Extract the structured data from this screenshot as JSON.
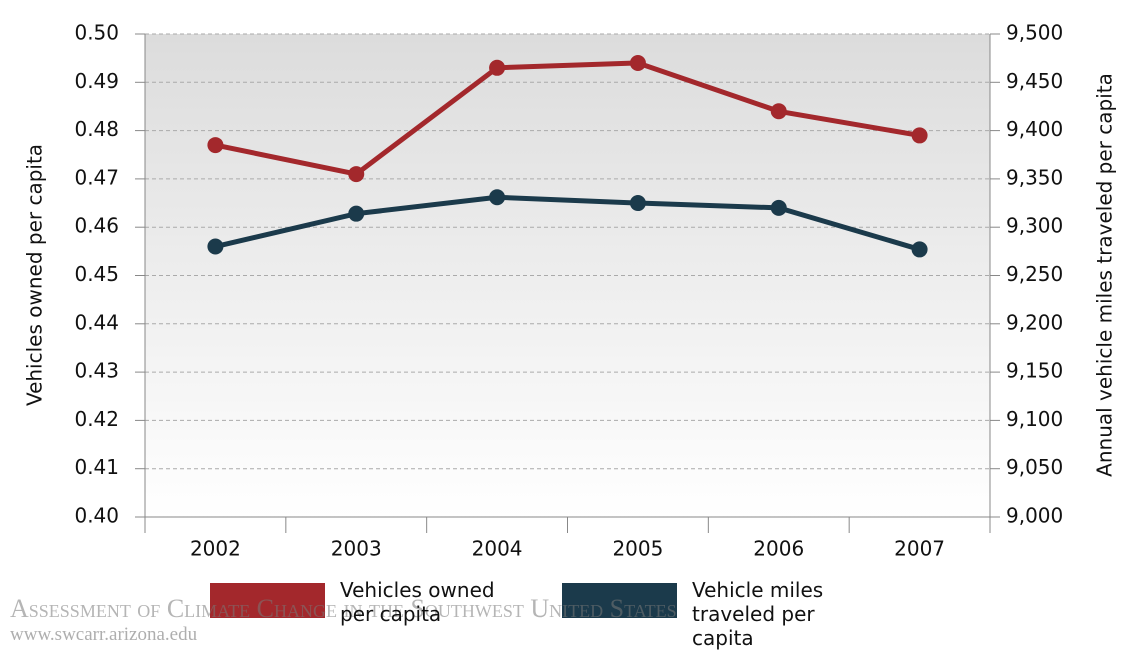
{
  "chart_data": {
    "type": "line",
    "categories": [
      "2002",
      "2003",
      "2004",
      "2005",
      "2006",
      "2007"
    ],
    "ylabel": "Vehicles owned per capita",
    "y2label": "Annual vehicle miles traveled per capita",
    "ylim": [
      0.4,
      0.5
    ],
    "yticks": [
      {
        "value": 0.4,
        "label": "0.40"
      },
      0.41,
      0.42,
      0.43,
      0.44,
      0.45,
      0.46,
      0.47,
      0.48,
      0.49,
      {
        "value": 0.5,
        "label": "0.50"
      }
    ],
    "y2lim": [
      9000,
      9500
    ],
    "y2ticks": [
      {
        "value": 9000,
        "label": "9,000"
      },
      {
        "value": 9050,
        "label": "9,050"
      },
      {
        "value": 9100,
        "label": "9,100"
      },
      {
        "value": 9150,
        "label": "9,150"
      },
      {
        "value": 9200,
        "label": "9,200"
      },
      {
        "value": 9250,
        "label": "9,250"
      },
      {
        "value": 9300,
        "label": "9,300"
      },
      {
        "value": 9350,
        "label": "9,350"
      },
      {
        "value": 9400,
        "label": "9,400"
      },
      {
        "value": 9450,
        "label": "9,450"
      },
      {
        "value": 9500,
        "label": "9,500"
      }
    ],
    "grid": true,
    "series": [
      {
        "name": "Vehicles owned per capita",
        "color": "#a3282c",
        "values": [
          0.477,
          0.471,
          0.493,
          0.494,
          0.484,
          0.479
        ]
      },
      {
        "name": "Vehicle miles traveled per capita",
        "color": "#1b3a4b",
        "axis": "y2",
        "values": [
          9280,
          9314,
          9331,
          9325,
          9320,
          9277
        ]
      }
    ],
    "watermark": [
      "Assessment of Climate Change in the Southwest United States",
      "www.swcarr.arizona.edu"
    ]
  }
}
